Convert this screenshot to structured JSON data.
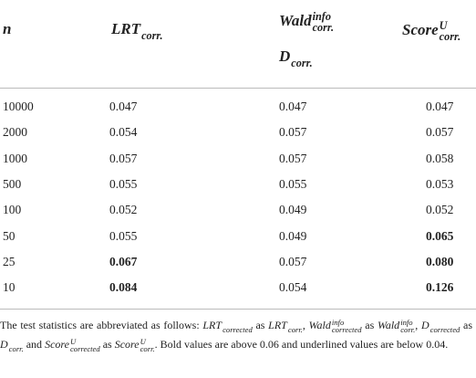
{
  "table": {
    "header": [
      [
        {
          "base": "n"
        }
      ],
      [
        {
          "base": "LRT",
          "sub": "corr."
        }
      ],
      [
        {
          "base": "Wald",
          "sup": "info",
          "sub": "corr."
        },
        {
          "base": "D",
          "sub": "corr."
        }
      ],
      [
        {
          "base": "Score",
          "sup": "U",
          "sub": "corr."
        }
      ]
    ],
    "rows": [
      [
        "10000",
        "0.047",
        "0.047",
        "0.047"
      ],
      [
        "2000",
        "0.054",
        "0.057",
        "0.057"
      ],
      [
        "1000",
        "0.057",
        "0.057",
        "0.058"
      ],
      [
        "500",
        "0.055",
        "0.055",
        "0.053"
      ],
      [
        "100",
        "0.052",
        "0.049",
        "0.052"
      ],
      [
        "50",
        "0.055",
        "0.049",
        "0.065"
      ],
      [
        "25",
        "0.067",
        "0.057",
        "0.080"
      ],
      [
        "10",
        "0.084",
        "0.054",
        "0.126"
      ]
    ],
    "bold_cells": [
      [
        5,
        3
      ],
      [
        6,
        1
      ],
      [
        6,
        3
      ],
      [
        7,
        1
      ],
      [
        7,
        3
      ]
    ]
  },
  "footnote": [
    "The test statistics are abbreviated as follows: ",
    {
      "base": "LRT",
      "sub": "corrected"
    },
    " as ",
    {
      "base": "LRT",
      "sub": "corr."
    },
    ", ",
    {
      "base": "Wald",
      "sup": "info",
      "sub": "corrected"
    },
    " as ",
    {
      "base": "Wald",
      "sup": "info",
      "sub": "corr."
    },
    ", ",
    {
      "base": "D",
      "sub": "corrected"
    },
    " as ",
    {
      "base": "D",
      "sub": "corr."
    },
    " and ",
    {
      "base": "Score",
      "sup": "U",
      "sub": "corrected"
    },
    " as ",
    {
      "base": "Score",
      "sup": "U",
      "sub": "corr."
    },
    ". Bold values are above 0.06 and underlined values are below 0.04."
  ]
}
